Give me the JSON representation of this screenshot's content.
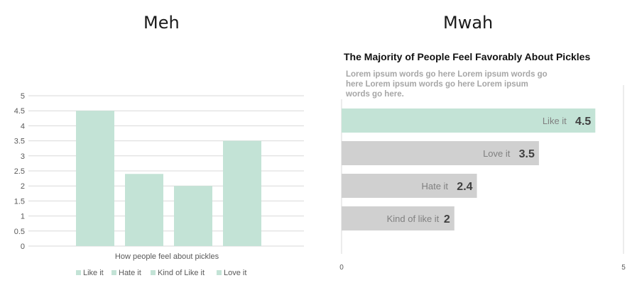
{
  "headings": {
    "left": "Meh",
    "right": "Mwah"
  },
  "chart_data": [
    {
      "type": "bar",
      "title": "",
      "xlabel": "How people feel about pickles",
      "ylabel": "",
      "categories": [
        "Like it",
        "Hate it",
        "Kind of Like it",
        "Love it"
      ],
      "values": [
        4.5,
        2.4,
        2,
        3.5
      ],
      "ylim": [
        0,
        5
      ],
      "yticks": [
        "0",
        "0.5",
        "1",
        "1.5",
        "2",
        "2.5",
        "3",
        "3.5",
        "4",
        "4.5",
        "5"
      ],
      "grid": true,
      "legend": {
        "position": "bottom",
        "entries": [
          "Like it",
          "Hate it",
          "Kind of Like it",
          "Love it"
        ]
      },
      "colors": {
        "bar": "#c3e3d6",
        "grid": "#d9d9d9",
        "text": "#595959"
      }
    },
    {
      "type": "bar",
      "orientation": "horizontal",
      "title": "The Majority of People Feel Favorably About Pickles",
      "subtitle": "Lorem ipsum words go here Lorem ipsum words go here Lorem ipsum words go here Lorem ipsum words go here.",
      "subtitle_lines": [
        "Lorem ipsum words go here Lorem ipsum words go",
        "here Lorem ipsum words go here Lorem ipsum",
        "words go here."
      ],
      "categories": [
        "Like it",
        "Love it",
        "Hate it",
        "Kind of like it"
      ],
      "values": [
        4.5,
        3.5,
        2.4,
        2
      ],
      "value_labels": [
        "4.5",
        "3.5",
        "2.4",
        "2"
      ],
      "xlim": [
        0,
        5
      ],
      "xticks": [
        "0",
        "5"
      ],
      "highlight_index": 0,
      "colors": {
        "highlight": "#c3e3d6",
        "bar": "#d0d0d0",
        "category_text": "#808080",
        "value_text": "#404040",
        "title": "#111111",
        "subtitle": "#a6a6a6"
      }
    }
  ]
}
